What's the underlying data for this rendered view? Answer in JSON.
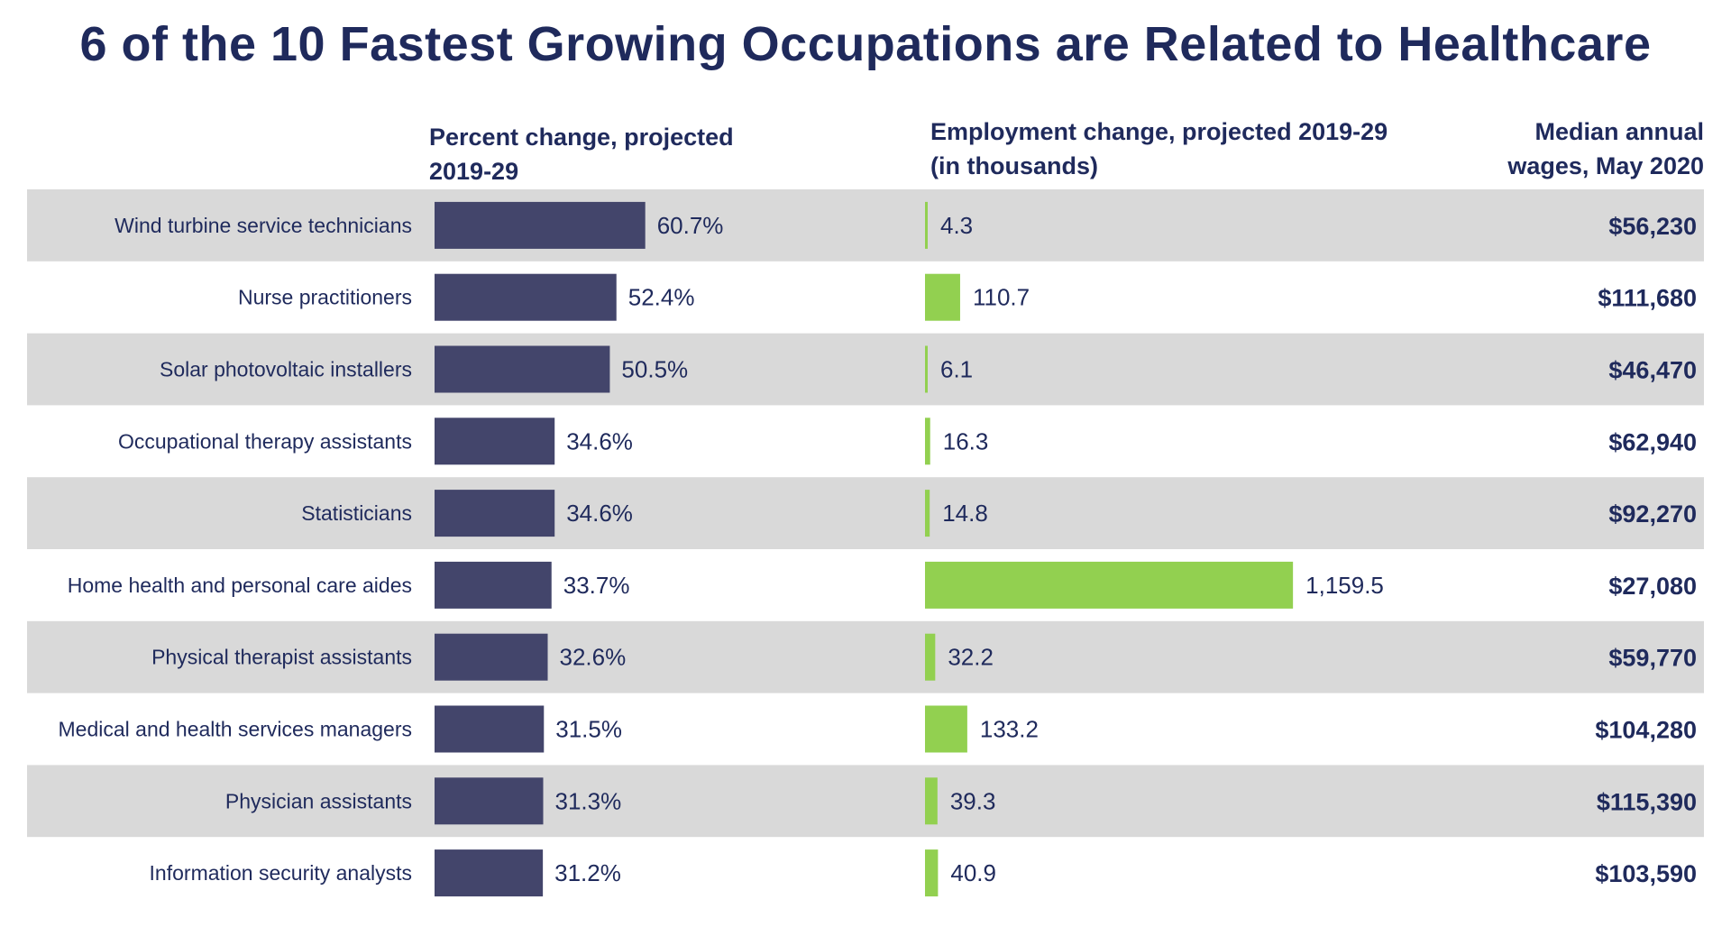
{
  "title": "6 of the 10 Fastest Growing Occupations are Related to Healthcare",
  "headers": {
    "percent_line1": "Percent change, projected",
    "percent_line2": "2019-29",
    "employment_line1": "Employment change, projected 2019-29",
    "employment_line2": "(in thousands)",
    "wages_line1": "Median annual",
    "wages_line2": "wages, May 2020"
  },
  "colors": {
    "title": "#1f2a5c",
    "percent_bar": "#43456b",
    "employment_bar": "#92d050",
    "row_stripe": "#d9d9d9",
    "text": "#1f2a5c"
  },
  "chart_data": {
    "type": "bar",
    "title": "6 of the 10 Fastest Growing Occupations are Related to Healthcare",
    "categories": [
      "Wind turbine service technicians",
      "Nurse practitioners",
      "Solar photovoltaic installers",
      "Occupational therapy assistants",
      "Statisticians",
      "Home health and personal care aides",
      "Physical therapist assistants",
      "Medical and health services managers",
      "Physician assistants",
      "Information security analysts"
    ],
    "series": [
      {
        "name": "Percent change, projected 2019-29",
        "values": [
          60.7,
          52.4,
          50.5,
          34.6,
          34.6,
          33.7,
          32.6,
          31.5,
          31.3,
          31.2
        ],
        "labels": [
          "60.7%",
          "52.4%",
          "50.5%",
          "34.6%",
          "34.6%",
          "33.7%",
          "32.6%",
          "31.5%",
          "31.3%",
          "31.2%"
        ]
      },
      {
        "name": "Employment change, projected 2019-29 (in thousands)",
        "values": [
          4.3,
          110.7,
          6.1,
          16.3,
          14.8,
          1159.5,
          32.2,
          133.2,
          39.3,
          40.9
        ],
        "labels": [
          "4.3",
          "110.7",
          "6.1",
          "16.3",
          "14.8",
          "1,159.5",
          "32.2",
          "133.2",
          "39.3",
          "40.9"
        ]
      }
    ],
    "wages": [
      "$56,230",
      "$111,680",
      "$46,470",
      "$62,940",
      "$92,270",
      "$27,080",
      "$59,770",
      "$104,280",
      "$115,390",
      "$103,590"
    ],
    "xlabel": "",
    "ylabel": ""
  }
}
